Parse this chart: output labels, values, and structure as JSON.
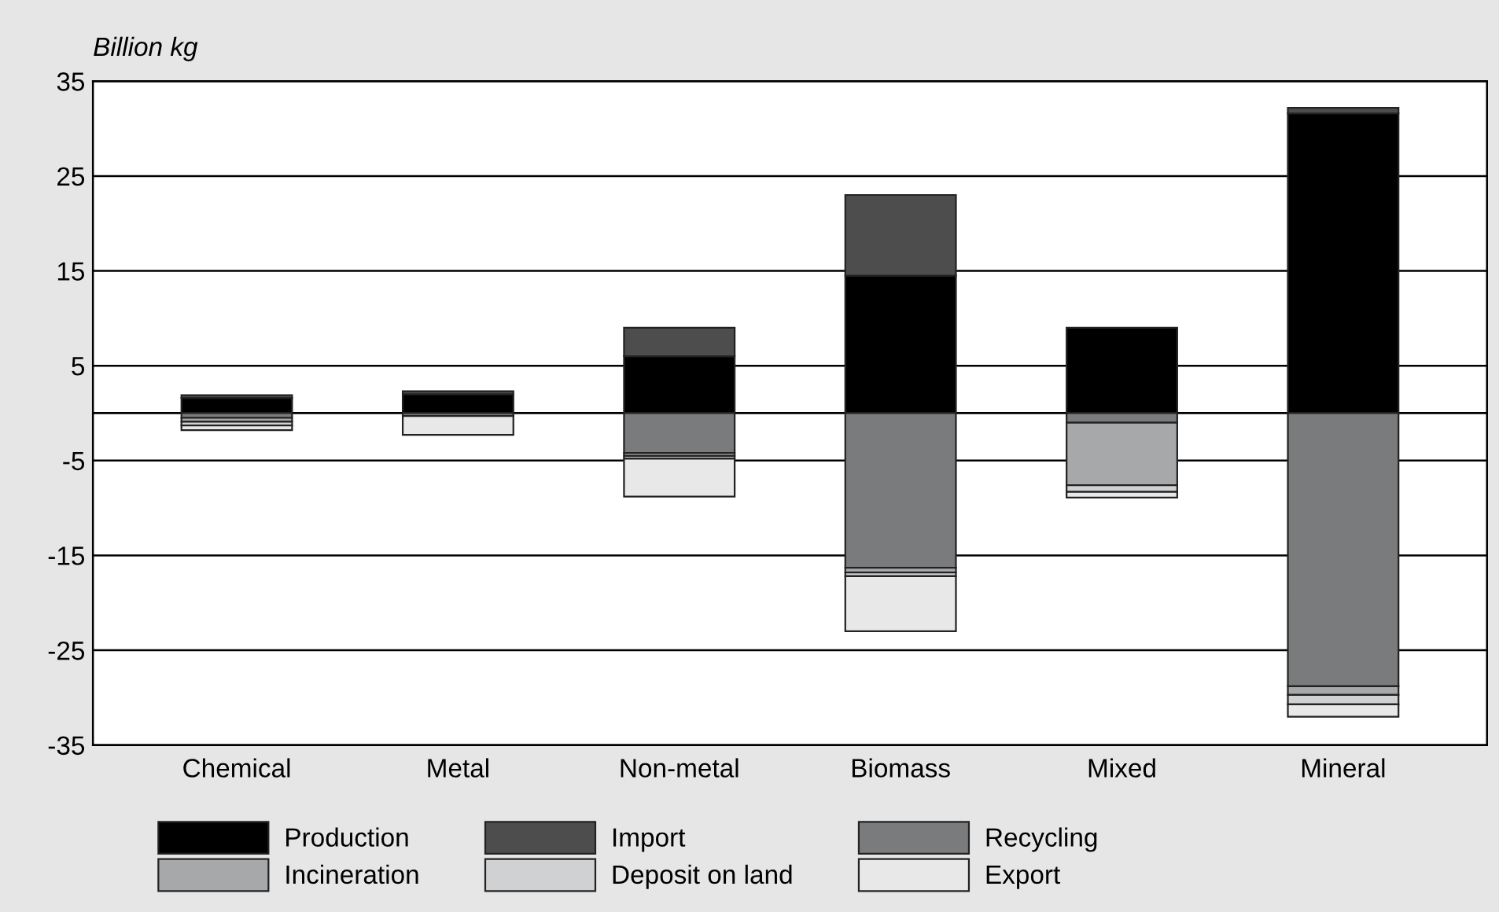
{
  "chart_data": {
    "type": "bar",
    "stacked": true,
    "ylabel": "Billion kg",
    "categories": [
      "Chemical",
      "Metal",
      "Non-metal",
      "Biomass",
      "Mixed",
      "Mineral"
    ],
    "series": [
      {
        "name": "Production",
        "color": "#000000",
        "values": [
          1.6,
          2.0,
          6.0,
          14.5,
          9.0,
          31.6
        ]
      },
      {
        "name": "Import",
        "color": "#4d4d4d",
        "values": [
          0.3,
          0.3,
          3.0,
          8.5,
          0,
          0.6
        ]
      },
      {
        "name": "Recycling",
        "color": "#7a7b7d",
        "values": [
          -0.5,
          -0.3,
          -4.2,
          -16.3,
          -1.0,
          -28.8
        ]
      },
      {
        "name": "Incineration",
        "color": "#a7a8aa",
        "values": [
          -0.4,
          0,
          -0.3,
          -0.5,
          -6.6,
          -0.9
        ]
      },
      {
        "name": "Deposit on land",
        "color": "#d0d1d3",
        "values": [
          -0.4,
          0,
          -0.3,
          -0.4,
          -0.7,
          -1.0
        ]
      },
      {
        "name": "Export",
        "color": "#e8e8e8",
        "values": [
          -0.5,
          -2.0,
          -4.0,
          -5.8,
          -0.6,
          -1.3
        ]
      }
    ],
    "ylim": [
      -35,
      35
    ],
    "yticks": [
      -35,
      -25,
      -15,
      -5,
      5,
      15,
      25,
      35
    ],
    "grid": "y",
    "legend": "bottom"
  }
}
